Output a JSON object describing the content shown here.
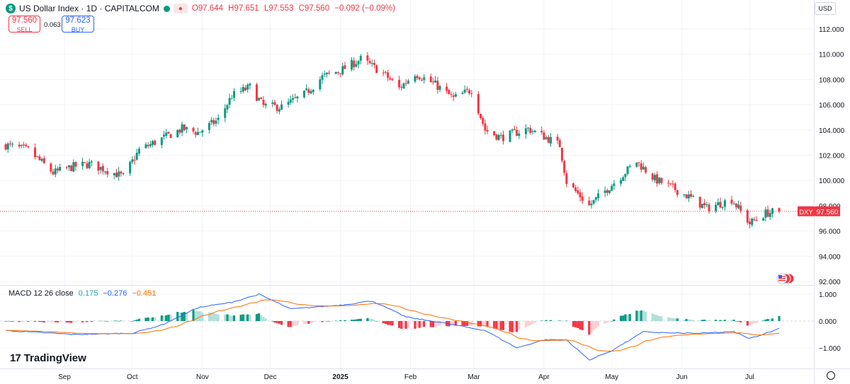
{
  "header": {
    "symbol_icon": "dollar-icon",
    "symbol_icon_glyph": "$",
    "title": "US Dollar Index · 1D · CAPITALCOM",
    "ohlc": {
      "open": "O97.644",
      "high": "H97.651",
      "low": "L97.553",
      "close": "C97.560",
      "change": "−0.092 (−0.09%)"
    },
    "currency": "USD"
  },
  "trade": {
    "sell_price": "97.560",
    "sell_label": "SELL",
    "spread": "0.063",
    "buy_price": "97.623",
    "buy_label": "BUY"
  },
  "price_tag": {
    "symbol": "DXY",
    "value": "97.560"
  },
  "macd_legend": {
    "label": "MACD 12 26 close",
    "hist": "0.175",
    "macd": "−0.276",
    "signal": "−0.451"
  },
  "branding": {
    "logo_mark": "17",
    "logo_text": "TradingView"
  },
  "colors": {
    "up": "#089981",
    "down": "#f23645",
    "macd": "#2962ff",
    "signal": "#ff6d00",
    "hist_up_strong": "#089981",
    "hist_up_weak": "#b2dfdb",
    "hist_down_strong": "#f23645",
    "hist_down_weak": "#ffcdd2"
  },
  "chart_data": {
    "type": "candlestick",
    "price_axis": {
      "labels": [
        "112.000",
        "110.000",
        "108.000",
        "106.000",
        "104.000",
        "102.000",
        "100.000",
        "98.000",
        "96.000",
        "94.000",
        "92.000"
      ],
      "range": [
        91.8,
        113.0
      ]
    },
    "macd_axis": {
      "labels": [
        "1.000",
        "0.000",
        "−1.000"
      ],
      "range": [
        -1.55,
        1.15
      ]
    },
    "x_labels": [
      {
        "label": "Sep",
        "date": "2024-09-01"
      },
      {
        "label": "Oct",
        "date": "2024-10-01"
      },
      {
        "label": "Nov",
        "date": "2024-11-01"
      },
      {
        "label": "Dec",
        "date": "2024-12-01"
      },
      {
        "label": "2025",
        "date": "2025-01-01"
      },
      {
        "label": "Feb",
        "date": "2025-02-01"
      },
      {
        "label": "Mar",
        "date": "2025-03-01"
      },
      {
        "label": "Apr",
        "date": "2025-04-01"
      },
      {
        "label": "May",
        "date": "2025-05-01"
      },
      {
        "label": "Jun",
        "date": "2025-06-01"
      },
      {
        "label": "Jul",
        "date": "2025-07-01"
      }
    ],
    "date_range": [
      "2024-08-06",
      "2025-07-14"
    ],
    "current_price": 97.56,
    "closes_anchor": [
      [
        "2024-08-06",
        102.8
      ],
      [
        "2024-08-16",
        102.4
      ],
      [
        "2024-08-27",
        100.6
      ],
      [
        "2024-09-05",
        101.1
      ],
      [
        "2024-09-12",
        101.3
      ],
      [
        "2024-09-20",
        100.8
      ],
      [
        "2024-09-27",
        100.3
      ],
      [
        "2024-10-04",
        102.4
      ],
      [
        "2024-10-14",
        103.3
      ],
      [
        "2024-10-23",
        104.1
      ],
      [
        "2024-10-30",
        103.8
      ],
      [
        "2024-11-08",
        104.8
      ],
      [
        "2024-11-14",
        106.7
      ],
      [
        "2024-11-22",
        107.4
      ],
      [
        "2024-11-28",
        105.9
      ],
      [
        "2024-12-06",
        105.8
      ],
      [
        "2024-12-16",
        106.8
      ],
      [
        "2024-12-24",
        108.2
      ],
      [
        "2025-01-02",
        108.8
      ],
      [
        "2025-01-10",
        109.6
      ],
      [
        "2025-01-20",
        108.5
      ],
      [
        "2025-01-27",
        107.3
      ],
      [
        "2025-02-03",
        108.5
      ],
      [
        "2025-02-12",
        107.6
      ],
      [
        "2025-02-20",
        106.5
      ],
      [
        "2025-02-28",
        107.2
      ],
      [
        "2025-03-06",
        104.0
      ],
      [
        "2025-03-13",
        103.4
      ],
      [
        "2025-03-25",
        104.1
      ],
      [
        "2025-04-02",
        103.4
      ],
      [
        "2025-04-08",
        102.8
      ],
      [
        "2025-04-11",
        99.9
      ],
      [
        "2025-04-21",
        98.0
      ],
      [
        "2025-04-30",
        99.5
      ],
      [
        "2025-05-12",
        101.5
      ],
      [
        "2025-05-20",
        100.1
      ],
      [
        "2025-05-29",
        99.3
      ],
      [
        "2025-06-05",
        98.6
      ],
      [
        "2025-06-12",
        97.8
      ],
      [
        "2025-06-23",
        98.5
      ],
      [
        "2025-07-01",
        96.6
      ],
      [
        "2025-07-08",
        97.4
      ],
      [
        "2025-07-14",
        97.56
      ]
    ],
    "macd_anchor": [
      [
        "2024-08-06",
        -0.35
      ],
      [
        "2024-09-05",
        -0.5
      ],
      [
        "2024-10-01",
        -0.45
      ],
      [
        "2024-10-14",
        -0.15
      ],
      [
        "2024-10-30",
        0.5
      ],
      [
        "2024-11-14",
        0.7
      ],
      [
        "2024-11-26",
        1.0
      ],
      [
        "2024-12-10",
        0.45
      ],
      [
        "2025-01-02",
        0.6
      ],
      [
        "2025-01-15",
        0.75
      ],
      [
        "2025-01-30",
        0.15
      ],
      [
        "2025-02-14",
        -0.05
      ],
      [
        "2025-03-06",
        -0.35
      ],
      [
        "2025-03-20",
        -1.0
      ],
      [
        "2025-04-01",
        -0.7
      ],
      [
        "2025-04-11",
        -0.7
      ],
      [
        "2025-04-21",
        -1.45
      ],
      [
        "2025-05-01",
        -1.1
      ],
      [
        "2025-05-15",
        -0.4
      ],
      [
        "2025-05-28",
        -0.45
      ],
      [
        "2025-06-10",
        -0.45
      ],
      [
        "2025-06-24",
        -0.4
      ],
      [
        "2025-07-01",
        -0.65
      ],
      [
        "2025-07-14",
        -0.28
      ]
    ]
  }
}
